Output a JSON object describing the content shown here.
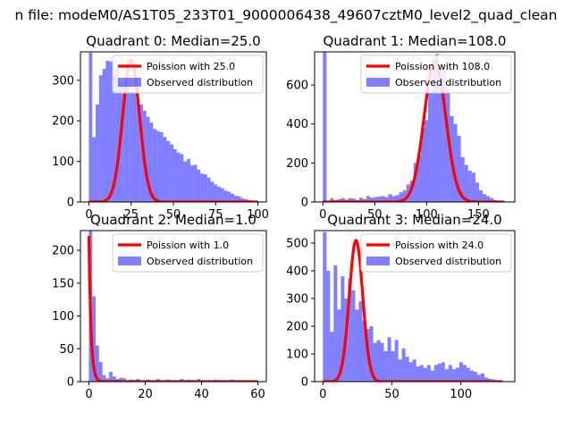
{
  "suptitle": "n file: modeM0/AS1T05_233T01_9000006438_49607cztM0_level2_quad_clean",
  "colors": {
    "poisson": "#ff0000",
    "observed": "#0000ff",
    "axes": "#000000"
  },
  "chart_data": [
    {
      "type": "bar",
      "title": "Quadrant 0: Median=25.0",
      "xlim": [
        -5,
        105
      ],
      "ylim": [
        0,
        370
      ],
      "xticks": [
        0,
        25,
        50,
        75,
        100
      ],
      "yticks": [
        0,
        100,
        200,
        300
      ],
      "legend_position": "top-right",
      "legend": {
        "poisson": "Poission with 25.0",
        "observed": "Observed distribution"
      },
      "histogram": {
        "bin_edges": [
          0,
          2,
          4,
          6,
          8,
          10,
          12,
          14,
          16,
          18,
          20,
          22,
          24,
          26,
          28,
          30,
          32,
          34,
          36,
          38,
          40,
          42,
          44,
          46,
          48,
          50,
          52,
          54,
          56,
          58,
          60,
          62,
          64,
          66,
          68,
          70,
          72,
          74,
          76,
          78,
          80,
          82,
          84,
          86,
          88,
          90,
          92,
          94,
          96,
          98,
          100
        ],
        "counts": [
          368,
          160,
          240,
          312,
          328,
          348,
          346,
          316,
          330,
          292,
          285,
          290,
          272,
          268,
          250,
          240,
          225,
          210,
          196,
          180,
          175,
          172,
          160,
          150,
          142,
          130,
          122,
          118,
          100,
          106,
          90,
          92,
          80,
          70,
          68,
          60,
          50,
          43,
          38,
          34,
          28,
          25,
          20,
          15,
          14,
          9,
          7,
          5,
          3,
          2
        ]
      },
      "poisson": {
        "mu": 25.0,
        "peak": 350,
        "x_range": [
          0,
          100
        ]
      }
    },
    {
      "type": "bar",
      "title": "Quadrant 1: Median=108.0",
      "xlim": [
        -8,
        185
      ],
      "ylim": [
        0,
        770
      ],
      "xticks": [
        0,
        50,
        100,
        150
      ],
      "yticks": [
        0,
        200,
        400,
        600
      ],
      "legend_position": "top-right",
      "legend": {
        "poisson": "Poission with 108.0",
        "observed": "Observed distribution"
      },
      "histogram": {
        "bin_edges": [
          0,
          3.5,
          7,
          10.5,
          14,
          17.5,
          21,
          24.5,
          28,
          31.5,
          35,
          38.5,
          42,
          45.5,
          49,
          52.5,
          56,
          59.5,
          63,
          66.5,
          70,
          73.5,
          77,
          80.5,
          84,
          87.5,
          91,
          94.5,
          98,
          101.5,
          105,
          108.5,
          112,
          115.5,
          119,
          122.5,
          126,
          129.5,
          133,
          136.5,
          140,
          143.5,
          147,
          150.5,
          154,
          157.5,
          161,
          164.5,
          168,
          171.5,
          175
        ],
        "counts": [
          770,
          5,
          20,
          10,
          15,
          20,
          12,
          20,
          18,
          10,
          22,
          15,
          30,
          22,
          25,
          28,
          30,
          25,
          40,
          30,
          35,
          50,
          60,
          90,
          110,
          200,
          240,
          380,
          420,
          560,
          700,
          760,
          640,
          670,
          580,
          440,
          400,
          340,
          230,
          190,
          160,
          150,
          100,
          60,
          40,
          30,
          20,
          10,
          5,
          3
        ]
      },
      "poisson": {
        "mu": 108.0,
        "peak": 725,
        "x_range": [
          0,
          175
        ]
      }
    },
    {
      "type": "bar",
      "title": "Quadrant 2: Median=1.0",
      "xlim": [
        -3,
        63
      ],
      "ylim": [
        0,
        230
      ],
      "xticks": [
        0,
        20,
        40,
        60
      ],
      "yticks": [
        0,
        50,
        100,
        150,
        200
      ],
      "legend_position": "top-right",
      "legend": {
        "poisson": "Poission with 1.0",
        "observed": "Observed distribution"
      },
      "histogram": {
        "bin_edges": [
          0,
          1.2,
          2.4,
          3.6,
          4.8,
          6,
          7.2,
          8.4,
          9.6,
          10.8,
          12,
          13.2,
          14.4,
          15.6,
          16.8,
          18,
          19.2,
          20.4,
          21.6,
          22.8,
          24,
          25.2,
          26.4,
          27.6,
          28.8,
          30,
          31.2,
          32.4,
          33.6,
          34.8,
          36,
          37.2,
          38.4,
          39.6,
          40.8,
          42,
          43.2,
          44.4,
          45.6,
          46.8,
          48,
          49.2,
          50.4,
          51.6,
          52.8,
          54,
          55.2,
          56.4,
          57.6,
          58.8,
          60
        ],
        "counts": [
          230,
          130,
          55,
          30,
          10,
          5,
          15,
          8,
          4,
          6,
          5,
          2,
          3,
          1,
          4,
          2,
          1,
          3,
          2,
          1,
          4,
          2,
          1,
          3,
          2,
          1,
          2,
          4,
          1,
          3,
          2,
          1,
          4,
          2,
          1,
          2,
          1,
          3,
          2,
          1,
          2,
          1,
          3,
          1,
          2,
          1,
          2,
          1,
          2,
          1
        ]
      },
      "poisson": {
        "mu": 1.0,
        "peak": 222,
        "x_range": [
          0,
          60
        ]
      }
    },
    {
      "type": "bar",
      "title": "Quadrant 3: Median=24.0",
      "xlim": [
        -6,
        139
      ],
      "ylim": [
        0,
        545
      ],
      "xticks": [
        0,
        50,
        100
      ],
      "yticks": [
        0,
        100,
        200,
        300,
        400,
        500
      ],
      "legend_position": "top-right",
      "legend": {
        "poisson": "Poission with 24.0",
        "observed": "Observed distribution"
      },
      "histogram": {
        "bin_edges": [
          0,
          2.6,
          5.2,
          7.8,
          10.4,
          13,
          15.6,
          18.2,
          20.8,
          23.4,
          26,
          28.6,
          31.2,
          33.8,
          36.4,
          39,
          41.6,
          44.2,
          46.8,
          49.4,
          52,
          54.6,
          57.2,
          59.8,
          62.4,
          65,
          67.6,
          70.2,
          72.8,
          75.4,
          78,
          80.6,
          83.2,
          85.8,
          88.4,
          91,
          93.6,
          96.2,
          98.8,
          101.4,
          104,
          106.6,
          109.2,
          111.8,
          114.4,
          117,
          119.6,
          122.2,
          124.8,
          127.4,
          130
        ],
        "counts": [
          540,
          400,
          180,
          420,
          260,
          380,
          300,
          370,
          330,
          260,
          290,
          220,
          190,
          200,
          140,
          150,
          140,
          110,
          160,
          110,
          150,
          80,
          120,
          90,
          70,
          80,
          55,
          60,
          50,
          60,
          40,
          60,
          65,
          70,
          45,
          60,
          45,
          50,
          70,
          60,
          50,
          40,
          35,
          25,
          30,
          15,
          10,
          8,
          5,
          3
        ]
      },
      "poisson": {
        "mu": 24.0,
        "peak": 510,
        "x_range": [
          0,
          130
        ]
      }
    }
  ]
}
